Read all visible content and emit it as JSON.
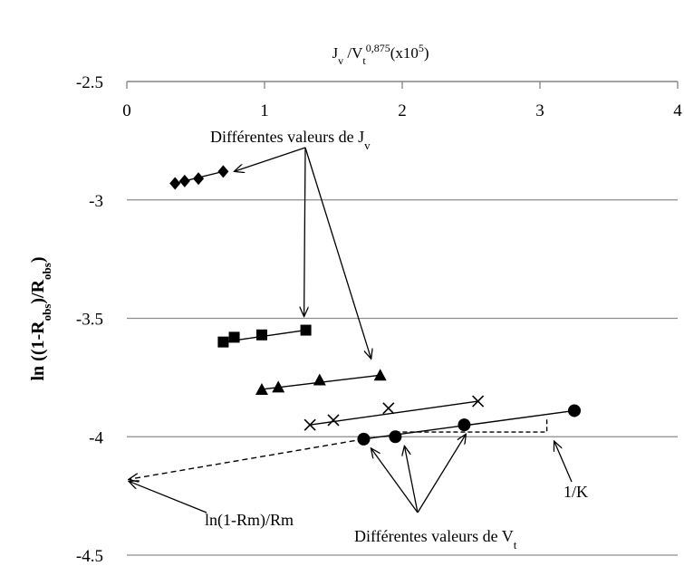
{
  "chart_data": {
    "type": "scatter",
    "title": "",
    "xlabel": {
      "base": "J",
      "sub": "v",
      "sep": " /V",
      "sub2": "t",
      "sup": "0,875",
      "tail": "(x10",
      "sup2": "5",
      "end": ")"
    },
    "ylabel": {
      "p1": "ln ((1-R",
      "s1": "obs",
      "p2": ")/R",
      "s2": "obs",
      "p3": ")"
    },
    "x_ticks": [
      "0",
      "1",
      "2",
      "3",
      "4"
    ],
    "y_ticks": [
      "-2.5",
      "-3",
      "-3.5",
      "-4",
      "-4.5"
    ],
    "xlim": [
      0,
      4
    ],
    "ylim": [
      -4.5,
      -2.5
    ],
    "x_axis_position": "top",
    "grid": "horizontal",
    "series": [
      {
        "marker": "diamond",
        "x": [
          0.35,
          0.42,
          0.52,
          0.7
        ],
        "y": [
          -2.93,
          -2.92,
          -2.91,
          -2.88
        ]
      },
      {
        "marker": "square",
        "x": [
          0.7,
          0.78,
          0.98,
          1.3
        ],
        "y": [
          -3.6,
          -3.58,
          -3.57,
          -3.55
        ]
      },
      {
        "marker": "triangle",
        "x": [
          0.98,
          1.1,
          1.4,
          1.84
        ],
        "y": [
          -3.8,
          -3.79,
          -3.76,
          -3.74
        ]
      },
      {
        "marker": "x",
        "x": [
          1.33,
          1.5,
          1.9,
          2.55
        ],
        "y": [
          -3.95,
          -3.93,
          -3.88,
          -3.85
        ]
      },
      {
        "marker": "circle",
        "x": [
          1.72,
          1.95,
          2.45,
          3.25
        ],
        "y": [
          -4.01,
          -4.0,
          -3.95,
          -3.89
        ]
      }
    ],
    "extrapolation_line": {
      "x": [
        0,
        1.72
      ],
      "y": [
        -4.18,
        -4.01
      ]
    },
    "k_bracket": {
      "x0": 1.95,
      "x1": 3.05,
      "y0": -3.98,
      "y1": -3.92
    },
    "annotations": {
      "jv_label": {
        "main": "Différentes valeurs de J",
        "sub": "v"
      },
      "vt_label": {
        "main": "Différentes valeurs de V",
        "sub": "t"
      },
      "intercept_label": "ln(1-Rm)/Rm",
      "k_label": "1/K"
    }
  }
}
